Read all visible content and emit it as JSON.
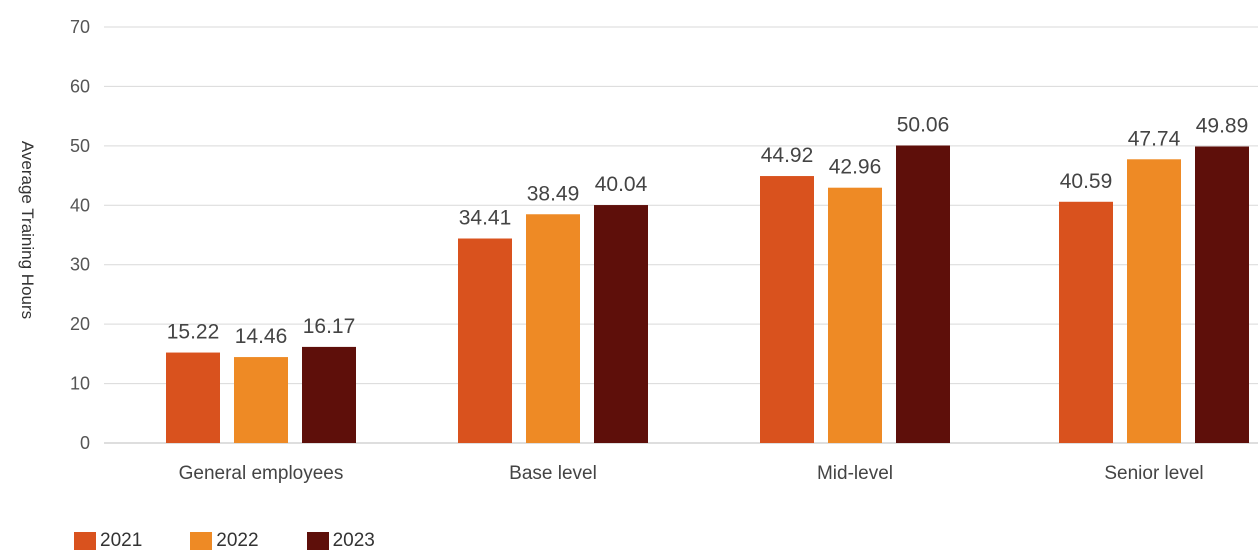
{
  "chart_data": {
    "type": "bar",
    "ylabel": "Average Training Hours",
    "ylim": [
      0,
      70
    ],
    "yticks": [
      0,
      10,
      20,
      30,
      40,
      50,
      60,
      70
    ],
    "grid": true,
    "legend_position": "bottom-left",
    "categories": [
      "General employees",
      "Base level",
      "Mid-level",
      "Senior level"
    ],
    "series": [
      {
        "name": "2021",
        "color": "#D9521E",
        "values": [
          15.22,
          34.41,
          44.92,
          40.59
        ]
      },
      {
        "name": "2022",
        "color": "#EE8A25",
        "values": [
          14.46,
          38.49,
          42.96,
          47.74
        ]
      },
      {
        "name": "2023",
        "color": "#5E0F0A",
        "values": [
          16.17,
          40.04,
          50.06,
          49.89
        ]
      }
    ]
  }
}
